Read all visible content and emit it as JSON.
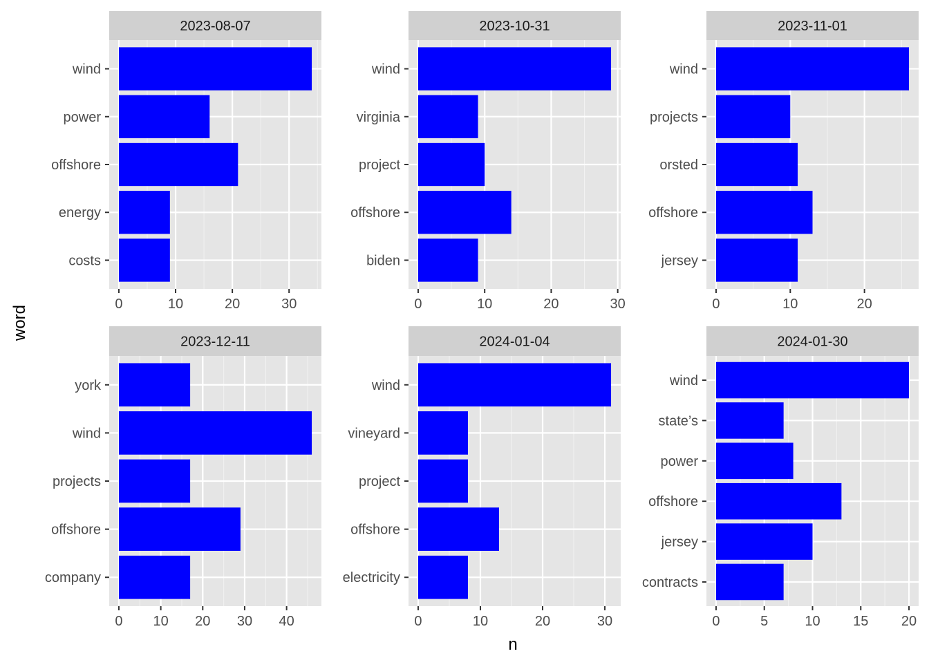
{
  "chart_data": {
    "type": "bar",
    "orientation": "horizontal",
    "layout": "facet-grid 2x3",
    "xlabel": "n",
    "ylabel": "word",
    "bar_color": "#0000FF",
    "panel_background": "#E5E5E5",
    "strip_background": "#D0D0D0",
    "grid": true,
    "facets": [
      {
        "label": "2023-08-07",
        "categories": [
          "wind",
          "power",
          "offshore",
          "energy",
          "costs"
        ],
        "values": [
          34,
          16,
          21,
          9,
          9
        ],
        "xlim": [
          -1.7,
          35.7
        ],
        "xticks": [
          0,
          10,
          20,
          30
        ]
      },
      {
        "label": "2023-10-31",
        "categories": [
          "wind",
          "virginia",
          "project",
          "offshore",
          "biden"
        ],
        "values": [
          29,
          9,
          10,
          14,
          9
        ],
        "xlim": [
          -1.45,
          30.45
        ],
        "xticks": [
          0,
          10,
          20,
          30
        ]
      },
      {
        "label": "2023-11-01",
        "categories": [
          "wind",
          "projects",
          "orsted",
          "offshore",
          "jersey"
        ],
        "values": [
          26,
          10,
          11,
          13,
          11
        ],
        "xlim": [
          -1.3,
          27.3
        ],
        "xticks": [
          0,
          10,
          20
        ]
      },
      {
        "label": "2023-12-11",
        "categories": [
          "york",
          "wind",
          "projects",
          "offshore",
          "company"
        ],
        "values": [
          17,
          46,
          17,
          29,
          17
        ],
        "xlim": [
          -2.3,
          48.3
        ],
        "xticks": [
          0,
          10,
          20,
          30,
          40
        ]
      },
      {
        "label": "2024-01-04",
        "categories": [
          "wind",
          "vineyard",
          "project",
          "offshore",
          "electricity"
        ],
        "values": [
          31,
          8,
          8,
          13,
          8
        ],
        "xlim": [
          -1.55,
          32.55
        ],
        "xticks": [
          0,
          10,
          20,
          30
        ]
      },
      {
        "label": "2024-01-30",
        "categories": [
          "wind",
          "state’s",
          "power",
          "offshore",
          "jersey",
          "contracts"
        ],
        "values": [
          20,
          7,
          8,
          13,
          10,
          7
        ],
        "xlim": [
          -1.0,
          21.0
        ],
        "xticks": [
          0,
          5,
          10,
          15,
          20
        ]
      }
    ]
  }
}
